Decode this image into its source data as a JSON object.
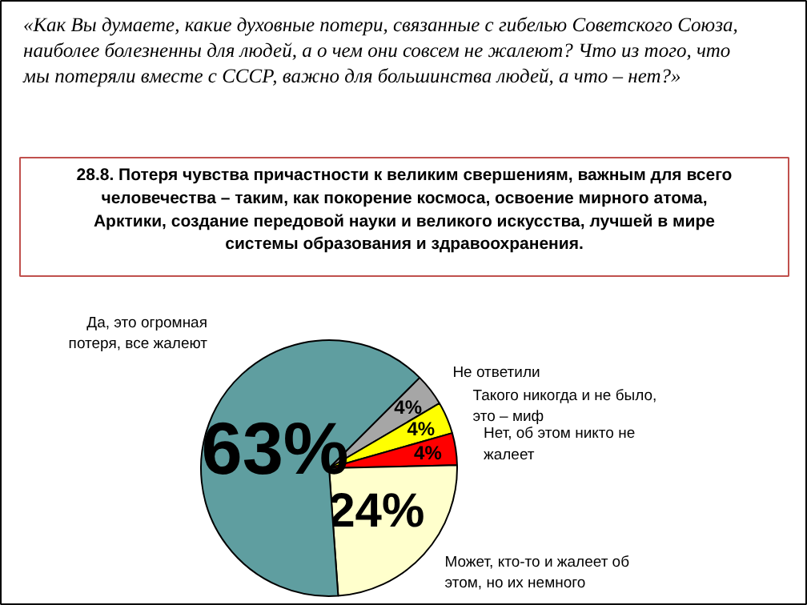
{
  "chart_data": {
    "type": "pie",
    "title": "«Как Вы думаете, какие духовные потери, связанные с гибелью Советского Союза, наиболее болезненны для людей, а о чем они совсем не жалеют? Что из того, что мы потеряли вместе с СССР, важно для большинства людей, а что – нет?»",
    "subtitle": "28.8. Потеря чувства причастности к великим свершениям, важным для всего человечества – таким, как покорение космоса, освоение мирного атома, Арктики, создание передовой науки и великого искусства, лучшей в мире системы образования и здравоохранения.",
    "categories": [
      "Не ответили",
      "Такого никогда и не было, это – миф",
      "Нет, об этом никто не жалеет",
      "Может, кто-то и жалеет об этом, но их немного",
      "Да, это огромная потеря, все жалеют"
    ],
    "values": [
      4,
      4,
      4,
      24,
      63
    ],
    "colors": [
      "#a6a6a6",
      "#ffff00",
      "#ff0000",
      "#ffffcc",
      "#5f9ea0"
    ],
    "value_labels": [
      "4%",
      "4%",
      "4%",
      "24%",
      "63%"
    ]
  }
}
